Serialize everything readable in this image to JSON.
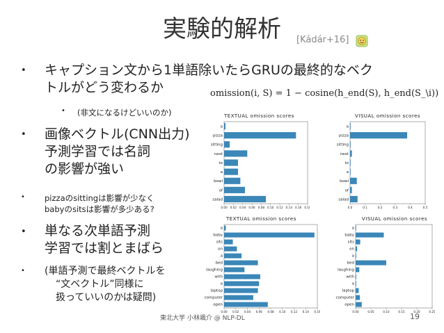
{
  "slide": {
    "title": "実験的解析",
    "citation": "[Kádár+16]",
    "bullets": [
      {
        "l1": "キャプション文から1単語除いたらGRUの最終的なベク",
        "l2": "トルがどう変わるか"
      },
      {
        "text": "(非文になるけどいいのか)"
      },
      {
        "l1": "画像ベクトル(CNN出力)",
        "l2": "予測学習では名詞",
        "l3": "の影響が強い"
      },
      {
        "l1": "pizzaのsittingは影響が少なく",
        "l2": "babyのsitsは影響が多少ある?"
      },
      {
        "l1": "単なる次単語予測",
        "l2": "学習では割とまばら"
      },
      {
        "l1": "(単語予測で最終ベクトルを",
        "l2": "“文ベクトル”同様に",
        "l3": "扱っていいのかは疑問)"
      }
    ],
    "formula": "omission(i, S) = 1 − cosine(h_end(S), h_end(S_\\i))",
    "footer": "東北大学 小林颯介 @ NLP-DL",
    "page": "19"
  },
  "chart_data": [
    {
      "type": "bar",
      "orientation": "horizontal",
      "title": "TEXTUAL omission scores",
      "categories": [
        "a",
        "pizza",
        "sitting",
        "next",
        "to",
        "a",
        "bowl",
        "of",
        "salad"
      ],
      "values": [
        0.003,
        0.155,
        0.012,
        0.05,
        0.03,
        0.03,
        0.035,
        0.045,
        0.09
      ],
      "ticks": [
        "0.00",
        "0.02",
        "0.04",
        "0.06",
        "0.08",
        "0.10",
        "0.12",
        "0.14",
        "0.16",
        "0.18"
      ],
      "xlim": [
        0,
        0.18
      ],
      "color": "#3a87b8"
    },
    {
      "type": "bar",
      "orientation": "horizontal",
      "title": "VISUAL omission scores",
      "categories": [
        "a",
        "pizza",
        "sitting",
        "next",
        "to",
        "a",
        "bowl",
        "of",
        "salad"
      ],
      "values": [
        0.001,
        0.38,
        0.002,
        0.012,
        0.003,
        0.002,
        0.045,
        0.012,
        0.05
      ],
      "ticks": [
        "0.0",
        "0.1",
        "0.2",
        "0.3",
        "0.4",
        "0.5"
      ],
      "xlim": [
        0,
        0.5
      ],
      "color": "#3a87b8"
    },
    {
      "type": "bar",
      "orientation": "horizontal",
      "title": "TEXTUAL omission scores",
      "categories": [
        "a",
        "baby",
        "sits",
        "on",
        "a",
        "bed",
        "laughing",
        "with",
        "a",
        "laptop",
        "computer",
        "open"
      ],
      "values": [
        0.003,
        0.155,
        0.015,
        0.022,
        0.03,
        0.058,
        0.035,
        0.062,
        0.06,
        0.058,
        0.05,
        0.075
      ],
      "ticks": [
        "0.00",
        "0.02",
        "0.04",
        "0.06",
        "0.08",
        "0.10",
        "0.12",
        "0.14",
        "0.16"
      ],
      "xlim": [
        0,
        0.16
      ],
      "color": "#3a87b8"
    },
    {
      "type": "bar",
      "orientation": "horizontal",
      "title": "VISUAL omission scores",
      "categories": [
        "a",
        "baby",
        "sits",
        "on",
        "a",
        "bed",
        "laughing",
        "with",
        "a",
        "laptop",
        "computer",
        "open"
      ],
      "values": [
        0.001,
        0.092,
        0.015,
        0.005,
        0.002,
        0.1,
        0.012,
        0.002,
        0.002,
        0.01,
        0.014,
        0.02
      ],
      "ticks": [
        "0.00",
        "0.05",
        "0.10",
        "0.15",
        "0.20",
        "0.25"
      ],
      "xlim": [
        0,
        0.25
      ],
      "color": "#3a87b8"
    }
  ]
}
